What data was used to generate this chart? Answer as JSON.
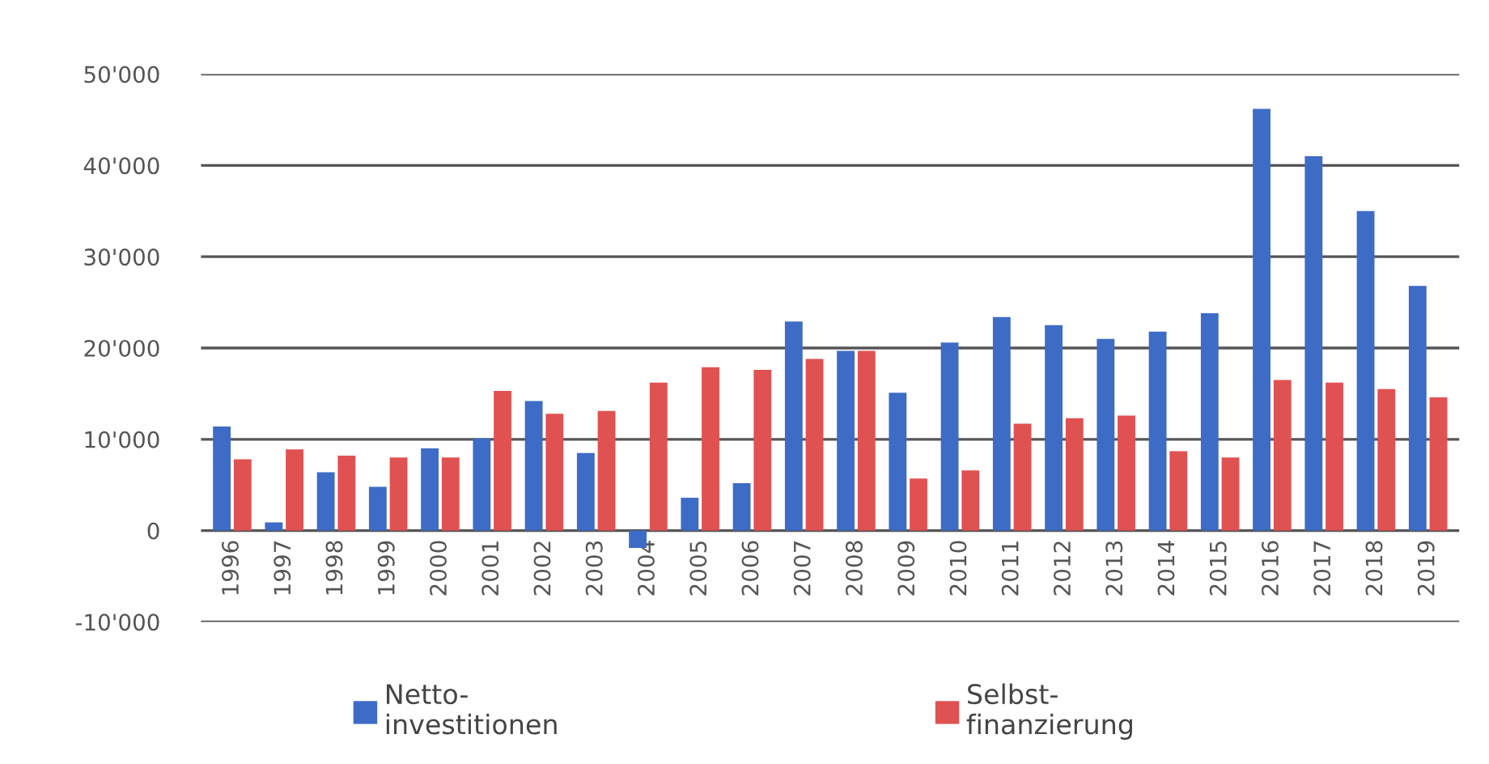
{
  "chart_data": {
    "type": "bar",
    "categories": [
      "1996",
      "1997",
      "1998",
      "1999",
      "2000",
      "2001",
      "2002",
      "2003",
      "2004",
      "2005",
      "2006",
      "2007",
      "2008",
      "2009",
      "2010",
      "2011",
      "2012",
      "2013",
      "2014",
      "2015",
      "2016",
      "2017",
      "2018",
      "2019"
    ],
    "series": [
      {
        "name": "Netto-\ninvestitionen",
        "color": "#3d6cc6",
        "values": [
          11400,
          900,
          6400,
          4800,
          9000,
          10100,
          14200,
          8500,
          -1900,
          3600,
          5200,
          22900,
          19700,
          15100,
          20600,
          23400,
          22500,
          21000,
          21800,
          23800,
          46200,
          41000,
          35000,
          26800
        ]
      },
      {
        "name": "Selbst-\nfinanzierung",
        "color": "#e05252",
        "values": [
          7800,
          8900,
          8200,
          8000,
          8000,
          15300,
          12800,
          13100,
          16200,
          17900,
          17600,
          18800,
          19700,
          5700,
          6600,
          11700,
          12300,
          12600,
          8700,
          8000,
          16500,
          16200,
          15500,
          14600
        ]
      }
    ],
    "ylim": [
      -10000,
      50000
    ],
    "yticks": [
      {
        "value": -10000,
        "label": "-10'000"
      },
      0,
      {
        "value": 10000,
        "label": "10'000"
      },
      {
        "value": 20000,
        "label": "20'000"
      },
      {
        "value": 30000,
        "label": "30'000"
      },
      {
        "value": 40000,
        "label": "40'000"
      },
      {
        "value": 50000,
        "label": "50'000"
      }
    ],
    "grid": "y",
    "legend": "bottom"
  }
}
